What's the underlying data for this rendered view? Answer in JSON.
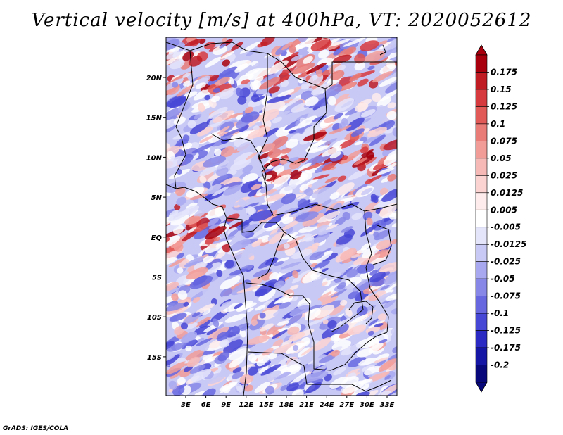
{
  "title": "Vertical velocity [m/s] at 400hPa, VT: 2020052612",
  "credit": "GrADS: IGES/COLA",
  "map": {
    "lon_labels": [
      "3E",
      "6E",
      "9E",
      "12E",
      "15E",
      "18E",
      "21E",
      "24E",
      "27E",
      "30E",
      "33E"
    ],
    "lat_labels": [
      "20N",
      "15N",
      "10N",
      "5N",
      "EQ",
      "5S",
      "10S",
      "15S"
    ],
    "field": "vertical velocity",
    "level": "400hPa",
    "valid_time": "2020052612"
  },
  "colorbar": {
    "levels": [
      "0.175",
      "0.15",
      "0.125",
      "0.1",
      "0.075",
      "0.05",
      "0.025",
      "0.0125",
      "0.005",
      "-0.005",
      "-0.0125",
      "-0.025",
      "-0.05",
      "-0.075",
      "-0.1",
      "-0.125",
      "-0.175",
      "-0.2"
    ],
    "colors": [
      "#a8000c",
      "#c01c24",
      "#d63a3e",
      "#e25a58",
      "#ea7c78",
      "#f29c98",
      "#f7b9b6",
      "#fbd4d2",
      "#fdeceb",
      "#ffffff",
      "#e4e4fb",
      "#c9c9f6",
      "#a8a8f0",
      "#8787e8",
      "#6767e0",
      "#4747d6",
      "#2b2bc4",
      "#1616a4",
      "#08087a"
    ],
    "top_color": "#a8000c",
    "bottom_color": "#08087a"
  }
}
